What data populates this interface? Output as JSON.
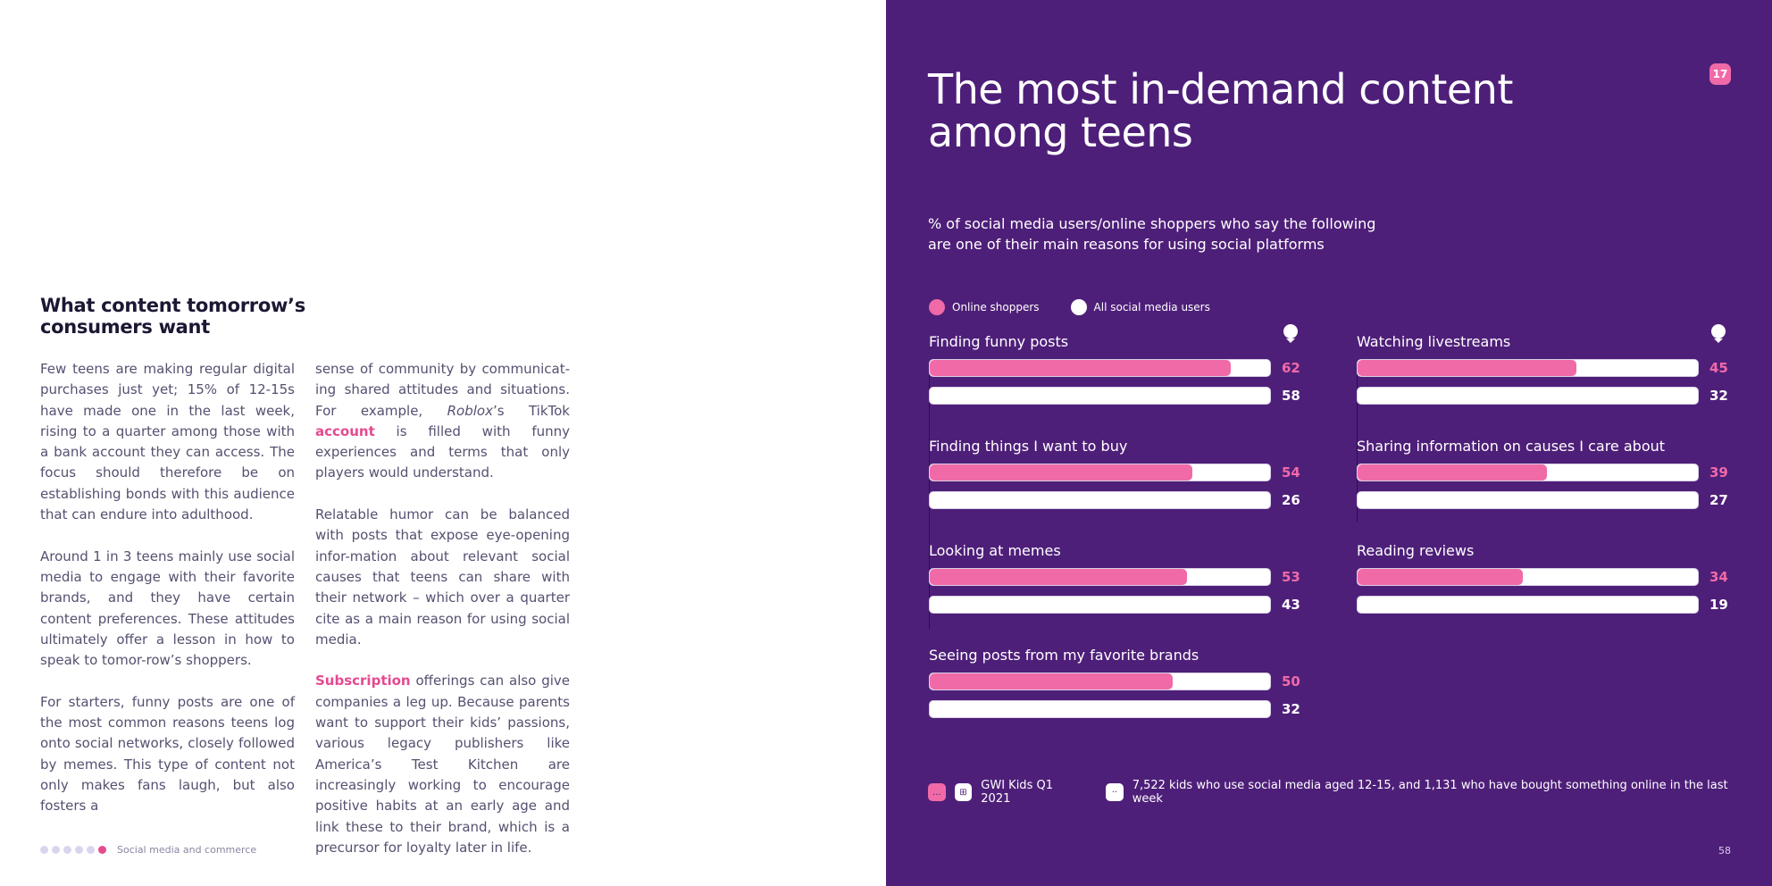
{
  "left": {
    "heading": "What content tomorrow’s consumers want",
    "col1": {
      "p1": "Few teens are making regular digital purchases just yet; 15% of 12-15s have made one in the last week, rising to a quarter among those with a bank account they can access. The focus should therefore be on establishing bonds with this audience that can endure into adulthood.",
      "p2": "Around 1 in 3 teens mainly use social media to engage with their favorite brands, and they have certain content preferences. These attitudes ultimately offer a lesson in how to speak to tomor-row’s shoppers.",
      "p3": "For starters, funny posts are one of the most common reasons teens log onto social networks, closely followed by memes. This type of content not only makes fans laugh, but also fosters a"
    },
    "col2": {
      "p1_a": "sense of community by communicat-ing shared attitudes and situations. For example, ",
      "p1_em": "Roblox",
      "p1_b": "’s TikTok ",
      "p1_link": "account",
      "p1_c": " is filled with funny experiences and terms that only players would understand.",
      "p2": "Relatable humor can be balanced with posts that expose eye-opening infor-mation about relevant social causes that teens can share with their network – which over a quarter cite as a main reason for using social media.",
      "p3_link": "Subscription",
      "p3_rest": " offerings can also give companies a leg up. Because parents want to support their kids’ passions, various legacy publishers like America’s Test Kitchen are increasingly working to encourage positive habits at an early age and link these to their brand, which is a precursor for loyalty later in life."
    },
    "footer_label": "Social media and commerce",
    "progress_dots": [
      false,
      false,
      false,
      false,
      false,
      true
    ]
  },
  "right": {
    "badge": "17",
    "title": "The most in-demand content among teens",
    "subtitle": "% of social media users/online shoppers who say the following are one of their main reasons for using social platforms",
    "legend": {
      "online_shoppers": "Online shoppers",
      "all_users": "All social media users"
    },
    "colors": {
      "pink": "#f06aa8",
      "white": "#ffffff",
      "background": "#4e1f79"
    },
    "source": {
      "label": "GWI Kids Q1 2021",
      "note": "7,522 kids who use social media aged 12-15, and 1,131 who have bought something online in the last week"
    },
    "page_number": "58"
  },
  "chart_data": {
    "type": "bar",
    "orientation": "horizontal",
    "xlim": [
      0,
      70
    ],
    "series": [
      {
        "name": "Online shoppers",
        "color": "#f06aa8"
      },
      {
        "name": "All social media users",
        "color": "#ffffff"
      }
    ],
    "groups": [
      {
        "label": "Finding funny posts",
        "online_shoppers": 62,
        "all_users": 58
      },
      {
        "label": "Finding things I want to buy",
        "online_shoppers": 54,
        "all_users": 26
      },
      {
        "label": "Looking at memes",
        "online_shoppers": 53,
        "all_users": 43
      },
      {
        "label": "Seeing posts from my favorite brands",
        "online_shoppers": 50,
        "all_users": 32
      },
      {
        "label": "Watching livestreams",
        "online_shoppers": 45,
        "all_users": 32
      },
      {
        "label": "Sharing information on causes I care about",
        "online_shoppers": 39,
        "all_users": 27
      },
      {
        "label": "Reading reviews",
        "online_shoppers": 34,
        "all_users": 19
      }
    ]
  }
}
